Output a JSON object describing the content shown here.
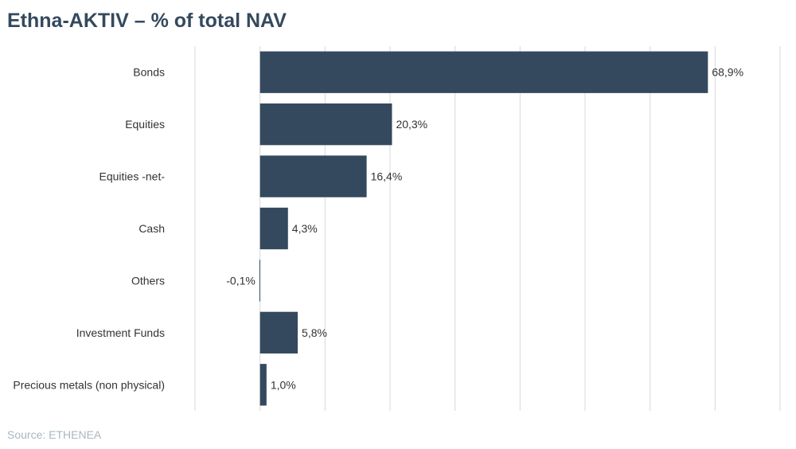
{
  "title": "Ethna-AKTIV – % of total NAV",
  "source": "Source: ETHENEA",
  "colors": {
    "bar": "#34495e",
    "grid": "#d9d9d9",
    "title": "#34495e",
    "text": "#333333",
    "source": "#a9b7c2"
  },
  "chart_data": {
    "type": "bar",
    "orientation": "horizontal",
    "title": "Ethna-AKTIV – % of total NAV",
    "categories": [
      "Bonds",
      "Equities",
      "Equities -net-",
      "Cash",
      "Others",
      "Investment Funds",
      "Precious metals (non physical)"
    ],
    "values": [
      68.9,
      20.3,
      16.4,
      4.3,
      -0.1,
      5.8,
      1.0
    ],
    "labels": [
      "68,9%",
      "20,3%",
      "16,4%",
      "4,3%",
      "-0,1%",
      "5,8%",
      "1,0%"
    ],
    "xlim": [
      -10,
      80
    ],
    "grid": true,
    "legend": "none"
  }
}
